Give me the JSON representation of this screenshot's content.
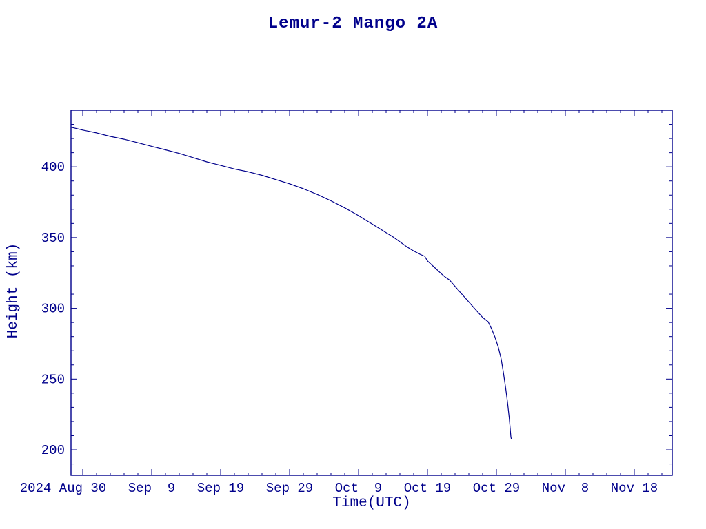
{
  "chart_data": {
    "type": "line",
    "title": "Lemur-2 Mango 2A",
    "xlabel": "Time(UTC)",
    "ylabel": "Height (km)",
    "axis_color": "#00008b",
    "line_color": "#00008b",
    "text_color": "#00008b",
    "background_color": "#ffffff",
    "grid": false,
    "legend": "none",
    "x_axis": {
      "tick_labels": [
        "2024 Aug 30",
        "Sep  9",
        "Sep 19",
        "Sep 29",
        "Oct  9",
        "Oct 19",
        "Oct 29",
        "Nov  8",
        "Nov 18"
      ],
      "tick_days": [
        0,
        10,
        20,
        30,
        40,
        50,
        60,
        70,
        80
      ],
      "minor_tick_interval_days": 2,
      "xlim_days": [
        -1.7,
        85.5
      ]
    },
    "y_axis": {
      "ticks": [
        200,
        250,
        300,
        350,
        400
      ],
      "minor_tick_interval": 10,
      "ylim": [
        182,
        440
      ]
    },
    "series": [
      {
        "name": "Lemur-2 Mango 2A height",
        "points_day_km": [
          [
            -1.7,
            428
          ],
          [
            0,
            426
          ],
          [
            2,
            424
          ],
          [
            4,
            421.5
          ],
          [
            6,
            419.5
          ],
          [
            8,
            417
          ],
          [
            10,
            414.5
          ],
          [
            12,
            412
          ],
          [
            14,
            409.5
          ],
          [
            16,
            406.5
          ],
          [
            18,
            403.5
          ],
          [
            20,
            401
          ],
          [
            22,
            398.5
          ],
          [
            24,
            396.5
          ],
          [
            26,
            394
          ],
          [
            28,
            391
          ],
          [
            30,
            388
          ],
          [
            32,
            384.5
          ],
          [
            34,
            380.5
          ],
          [
            36,
            376
          ],
          [
            38,
            371
          ],
          [
            40,
            365.5
          ],
          [
            41,
            362.5
          ],
          [
            42,
            359.5
          ],
          [
            43,
            356.5
          ],
          [
            44,
            353.5
          ],
          [
            45,
            350.5
          ],
          [
            46,
            347
          ],
          [
            47,
            343.5
          ],
          [
            48,
            340.5
          ],
          [
            49,
            338
          ],
          [
            49.6,
            336.8
          ],
          [
            50,
            333.5
          ],
          [
            51,
            329
          ],
          [
            52,
            324.5
          ],
          [
            52.6,
            322
          ],
          [
            53.2,
            320
          ],
          [
            54,
            315.5
          ],
          [
            55,
            310
          ],
          [
            56,
            304.5
          ],
          [
            57,
            299
          ],
          [
            58,
            293.5
          ],
          [
            58.8,
            290.5
          ],
          [
            59.3,
            285.5
          ],
          [
            59.8,
            279.5
          ],
          [
            60.3,
            272
          ],
          [
            60.7,
            264
          ],
          [
            61.0,
            255
          ],
          [
            61.3,
            245
          ],
          [
            61.6,
            234
          ],
          [
            61.85,
            223
          ],
          [
            62.0,
            215
          ],
          [
            62.1,
            209
          ],
          [
            62.15,
            208
          ]
        ]
      }
    ]
  }
}
